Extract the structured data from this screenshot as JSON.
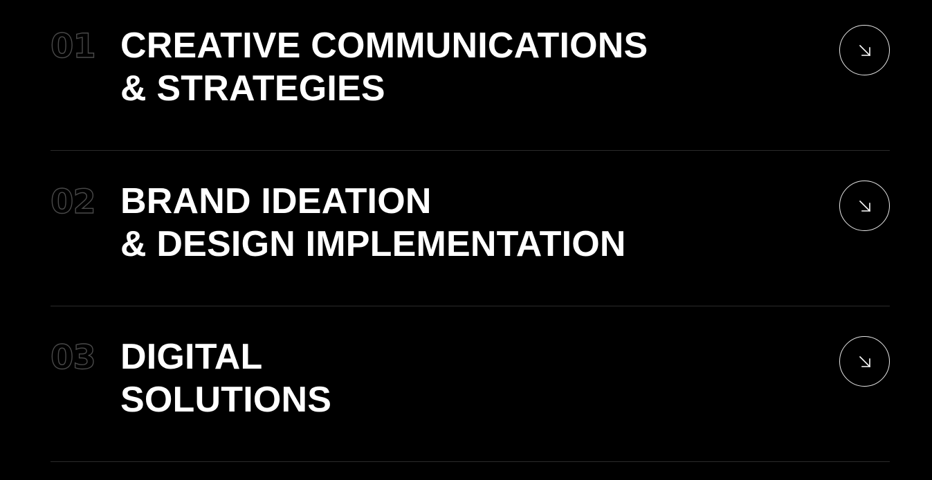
{
  "services": [
    {
      "number": "01",
      "title_line1": "CREATIVE COMMUNICATIONS",
      "title_line2": "& STRATEGIES",
      "arrow_icon": "arrow-down-right-icon"
    },
    {
      "number": "02",
      "title_line1": "BRAND IDEATION",
      "title_line2": "& DESIGN IMPLEMENTATION",
      "arrow_icon": "arrow-down-right-icon"
    },
    {
      "number": "03",
      "title_line1": "DIGITAL",
      "title_line2": "SOLUTIONS",
      "arrow_icon": "arrow-down-right-icon"
    }
  ],
  "colors": {
    "background": "#000000",
    "text": "#ffffff",
    "number_outline": "#4a4a4a",
    "divider": "#2b2b2b",
    "arrow_border": "#e8e8e8"
  }
}
